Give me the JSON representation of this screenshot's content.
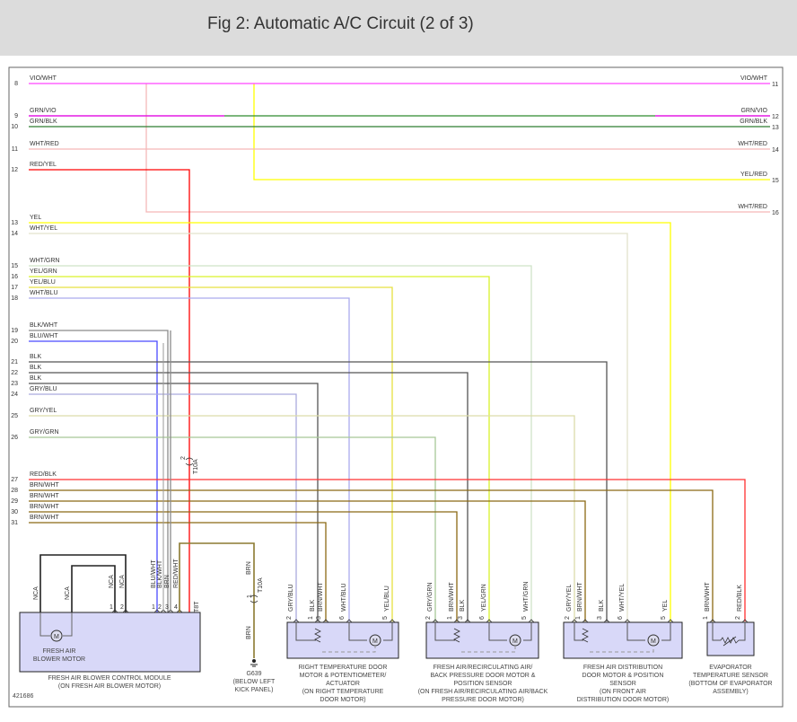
{
  "header": {
    "title": "Fig 2: Automatic A/C Circuit (2 of 3)"
  },
  "diagram_id": "421686",
  "wires_left": [
    {
      "num": "8",
      "label": "VIO/WHT",
      "color": "#ff44ff"
    },
    {
      "num": "9",
      "label": "GRN/VIO",
      "color": "#2e8b2e",
      "stripe": "#ff00ff"
    },
    {
      "num": "10",
      "label": "GRN/BLK",
      "color": "#2e7d32"
    },
    {
      "num": "11",
      "label": "WHT/RED",
      "color": "#f5b8b8"
    },
    {
      "num": "12",
      "label": "RED/YEL",
      "color": "#ff0000",
      "stripe": "#ffff00"
    },
    {
      "num": "13",
      "label": "YEL",
      "color": "#ffff00"
    },
    {
      "num": "14",
      "label": "WHT/YEL",
      "color": "#e2e2cc"
    },
    {
      "num": "15",
      "label": "WHT/GRN",
      "color": "#cfe3c8"
    },
    {
      "num": "16",
      "label": "YEL/GRN",
      "color": "#d9f22a"
    },
    {
      "num": "17",
      "label": "YEL/BLU",
      "color": "#e6e040"
    },
    {
      "num": "18",
      "label": "WHT/BLU",
      "color": "#aaaaee"
    },
    {
      "num": "19",
      "label": "BLK/WHT",
      "color": "#8a8a8a"
    },
    {
      "num": "20",
      "label": "BLU/WHT",
      "color": "#4a4aff"
    },
    {
      "num": "21",
      "label": "BLK",
      "color": "#555555"
    },
    {
      "num": "22",
      "label": "BLK",
      "color": "#555555"
    },
    {
      "num": "23",
      "label": "BLK",
      "color": "#555555"
    },
    {
      "num": "24",
      "label": "GRY/BLU",
      "color": "#aaaadd"
    },
    {
      "num": "25",
      "label": "GRY/YEL",
      "color": "#dcdcaa"
    },
    {
      "num": "26",
      "label": "GRY/GRN",
      "color": "#a8c898"
    },
    {
      "num": "27",
      "label": "RED/BLK",
      "color": "#ff3030"
    },
    {
      "num": "28",
      "label": "BRN/WHT",
      "color": "#8b6914"
    },
    {
      "num": "29",
      "label": "BRN/WHT",
      "color": "#8b6914"
    },
    {
      "num": "30",
      "label": "BRN/WHT",
      "color": "#8b6914"
    },
    {
      "num": "31",
      "label": "BRN/WHT",
      "color": "#8b6914"
    }
  ],
  "wires_right": [
    {
      "num": "11",
      "label": "VIO/WHT"
    },
    {
      "num": "12",
      "label": "GRN/VIO"
    },
    {
      "num": "13",
      "label": "GRN/BLK"
    },
    {
      "num": "14",
      "label": "WHT/RED"
    },
    {
      "num": "15",
      "label": "YEL/RED",
      "color": "#ffff00"
    },
    {
      "num": "16",
      "label": "WHT/RED",
      "color": "#f5b8b8"
    }
  ],
  "connector_t10a": {
    "name": "T10A",
    "pin_top": "2",
    "pin_bottom": "1"
  },
  "blower_module": {
    "pins": [
      {
        "num": "1",
        "label": "NCA"
      },
      {
        "num": "2",
        "label": "NCA"
      },
      {
        "num": "1",
        "label": "BLU/WHT"
      },
      {
        "num": "2",
        "label": "BLK/WHT"
      },
      {
        "num": "3",
        "label": "BRN"
      },
      {
        "num": "4",
        "label": "RED/WHT"
      }
    ],
    "connector": "T8T",
    "motor_nca": [
      "NCA",
      "NCA"
    ],
    "motor_symbol": "M",
    "motor_label": [
      "FRESH AIR",
      "BLOWER MOTOR"
    ],
    "label": [
      "FRESH AIR BLOWER CONTROL MODULE",
      "(ON FRESH AIR BLOWER MOTOR)"
    ]
  },
  "ground": {
    "wire_top": "BRN",
    "wire_bottom": "BRN",
    "label": [
      "G639",
      "(BELOW LEFT",
      "KICK PANEL)"
    ]
  },
  "components": [
    {
      "pins": [
        {
          "num": "2",
          "label": "GRY/BLU"
        },
        {
          "num": "1",
          "label": "BLK"
        },
        {
          "num": "3",
          "label": "BRN/WHT"
        },
        {
          "num": "6",
          "label": "WHT/BLU"
        },
        {
          "num": "5",
          "label": "YEL/BLU"
        }
      ],
      "label": [
        "RIGHT TEMPERATURE DOOR",
        "MOTOR & POTENTIOMETER/",
        "ACTUATOR",
        "(ON RIGHT TEMPERATURE",
        "DOOR MOTOR)"
      ]
    },
    {
      "pins": [
        {
          "num": "2",
          "label": "GRY/GRN"
        },
        {
          "num": "1",
          "label": "BRN/WHT"
        },
        {
          "num": "3",
          "label": "BLK"
        },
        {
          "num": "6",
          "label": "YEL/GRN"
        },
        {
          "num": "5",
          "label": "WHT/GRN"
        }
      ],
      "label": [
        "FRESH AIR/RECIRCULATING AIR/",
        "BACK PRESSURE DOOR MOTOR &",
        "POSITION SENSOR",
        "(ON FRESH AIR/RECIRCULATING AIR/BACK",
        "PRESSURE DOOR MOTOR)"
      ]
    },
    {
      "pins": [
        {
          "num": "2",
          "label": "GRY/YEL"
        },
        {
          "num": "1",
          "label": "BRN/WHT"
        },
        {
          "num": "3",
          "label": "BLK"
        },
        {
          "num": "6",
          "label": "WHT/YEL"
        },
        {
          "num": "5",
          "label": "YEL"
        }
      ],
      "label": [
        "FRESH AIR DISTRIBUTION",
        "DOOR MOTOR & POSITION",
        "SENSOR",
        "(ON FRONT AIR",
        "DISTRIBUTION DOOR MOTOR)"
      ]
    },
    {
      "pins": [
        {
          "num": "1",
          "label": "BRN/WHT"
        },
        {
          "num": "2",
          "label": "RED/BLK"
        }
      ],
      "label": [
        "EVAPORATOR",
        "TEMPERATURE SENSOR",
        "(BOTTOM OF EVAPORATOR",
        "ASSEMBLY)"
      ]
    }
  ],
  "colors": {
    "component_fill": "#d8d8f8",
    "header_bg": "#dcdcdc"
  }
}
